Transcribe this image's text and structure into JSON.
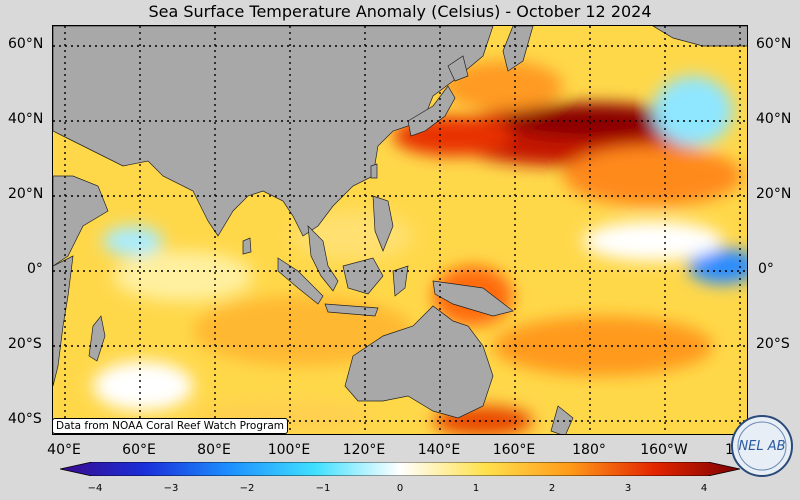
{
  "title": "Sea Surface Temperature Anomaly (Celsius) - October 12 2024",
  "lat_labels": [
    "60°N",
    "40°N",
    "20°N",
    "0°",
    "20°S",
    "40°S"
  ],
  "lon_labels": [
    "40°E",
    "60°E",
    "80°E",
    "100°E",
    "120°E",
    "140°E",
    "160°E",
    "180°",
    "160°W",
    "140°W"
  ],
  "credit": "Data from NOAA Coral Reef Watch Program",
  "colorbar": {
    "ticks": [
      "−4",
      "−3",
      "−2",
      "−1",
      "0",
      "1",
      "2",
      "3",
      "4"
    ],
    "min": -4,
    "max": 4,
    "colors": [
      "#3a0a8c",
      "#1a2fd9",
      "#1e90ff",
      "#40e0ff",
      "#ffffff",
      "#ffe14d",
      "#ff9a1a",
      "#e32400",
      "#7a0000"
    ]
  },
  "logo": {
    "text": "NEL AB",
    "name": "logo-icon"
  },
  "map": {
    "land_color": "#a8a8a8",
    "extent": {
      "lon": [
        40,
        220
      ],
      "lat": [
        -43,
        63
      ]
    }
  }
}
